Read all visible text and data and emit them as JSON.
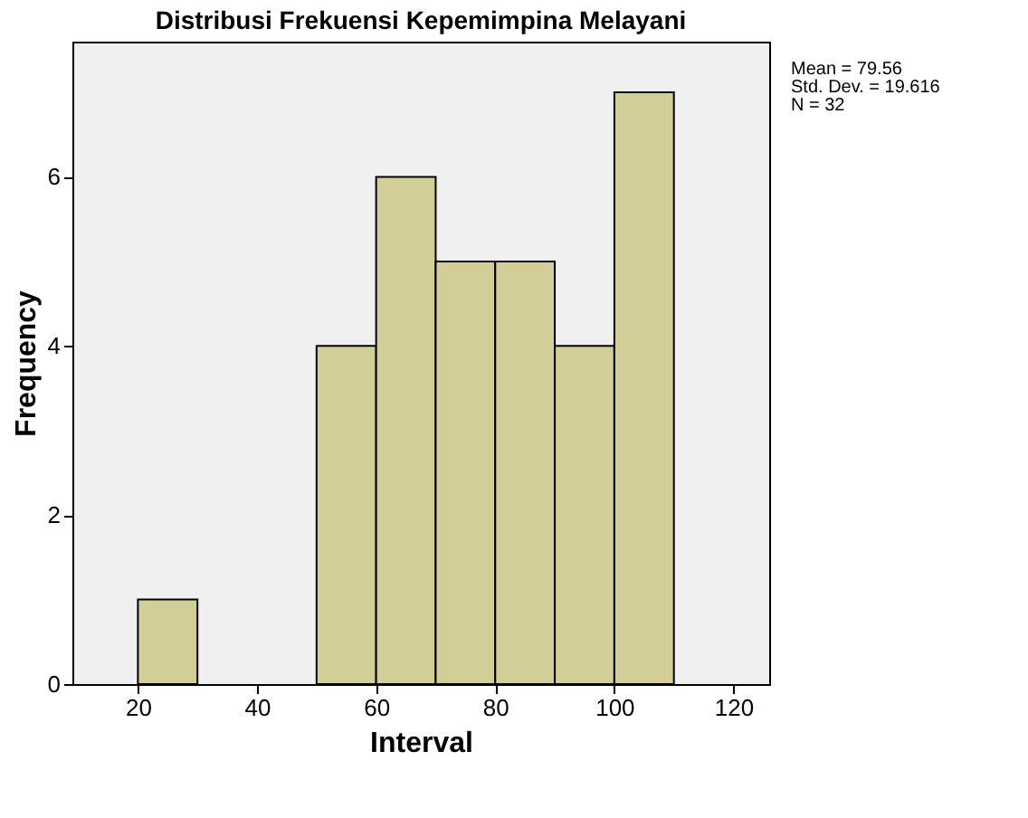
{
  "chart_data": {
    "type": "histogram",
    "title": "Distribusi Frekuensi Kepemimpina Melayani",
    "xlabel": "Interval",
    "ylabel": "Frequency",
    "bins": [
      20,
      30,
      40,
      50,
      60,
      70,
      80,
      90,
      100,
      110
    ],
    "values": [
      1,
      0,
      0,
      4,
      6,
      5,
      5,
      4,
      7
    ],
    "color": "#d3ce97",
    "xlim": [
      9,
      126
    ],
    "xticks": [
      20,
      40,
      60,
      80,
      100,
      120
    ],
    "ylim": [
      0,
      7.6
    ],
    "yticks": [
      0,
      2,
      4,
      6
    ],
    "grid": false,
    "annotations": [
      "Mean = 79.56",
      "Std. Dev. = 19.616",
      "N = 32"
    ]
  }
}
